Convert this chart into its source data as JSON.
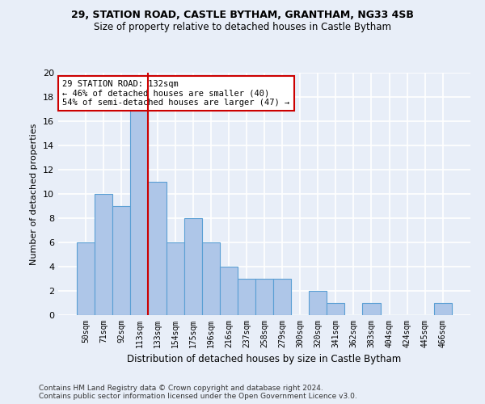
{
  "title1": "29, STATION ROAD, CASTLE BYTHAM, GRANTHAM, NG33 4SB",
  "title2": "Size of property relative to detached houses in Castle Bytham",
  "xlabel": "Distribution of detached houses by size in Castle Bytham",
  "ylabel": "Number of detached properties",
  "bin_labels": [
    "50sqm",
    "71sqm",
    "92sqm",
    "113sqm",
    "133sqm",
    "154sqm",
    "175sqm",
    "196sqm",
    "216sqm",
    "237sqm",
    "258sqm",
    "279sqm",
    "300sqm",
    "320sqm",
    "341sqm",
    "362sqm",
    "383sqm",
    "404sqm",
    "424sqm",
    "445sqm",
    "466sqm"
  ],
  "values": [
    6,
    10,
    9,
    17,
    11,
    6,
    8,
    6,
    4,
    3,
    3,
    3,
    0,
    2,
    1,
    0,
    1,
    0,
    0,
    0,
    1
  ],
  "bar_color": "#aec6e8",
  "bar_edge_color": "#5a9fd4",
  "vline_color": "#cc0000",
  "vline_position": 3.5,
  "annotation_text": "29 STATION ROAD: 132sqm\n← 46% of detached houses are smaller (40)\n54% of semi-detached houses are larger (47) →",
  "annotation_box_color": "#ffffff",
  "annotation_box_edgecolor": "#cc0000",
  "ylim": [
    0,
    20
  ],
  "yticks": [
    0,
    2,
    4,
    6,
    8,
    10,
    12,
    14,
    16,
    18,
    20
  ],
  "footer1": "Contains HM Land Registry data © Crown copyright and database right 2024.",
  "footer2": "Contains public sector information licensed under the Open Government Licence v3.0.",
  "bg_color": "#e8eef8",
  "grid_color": "#ffffff",
  "title1_fontsize": 9,
  "title2_fontsize": 8.5,
  "ylabel_fontsize": 8,
  "xlabel_fontsize": 8.5,
  "tick_fontsize": 7,
  "annot_fontsize": 7.5,
  "footer_fontsize": 6.5
}
